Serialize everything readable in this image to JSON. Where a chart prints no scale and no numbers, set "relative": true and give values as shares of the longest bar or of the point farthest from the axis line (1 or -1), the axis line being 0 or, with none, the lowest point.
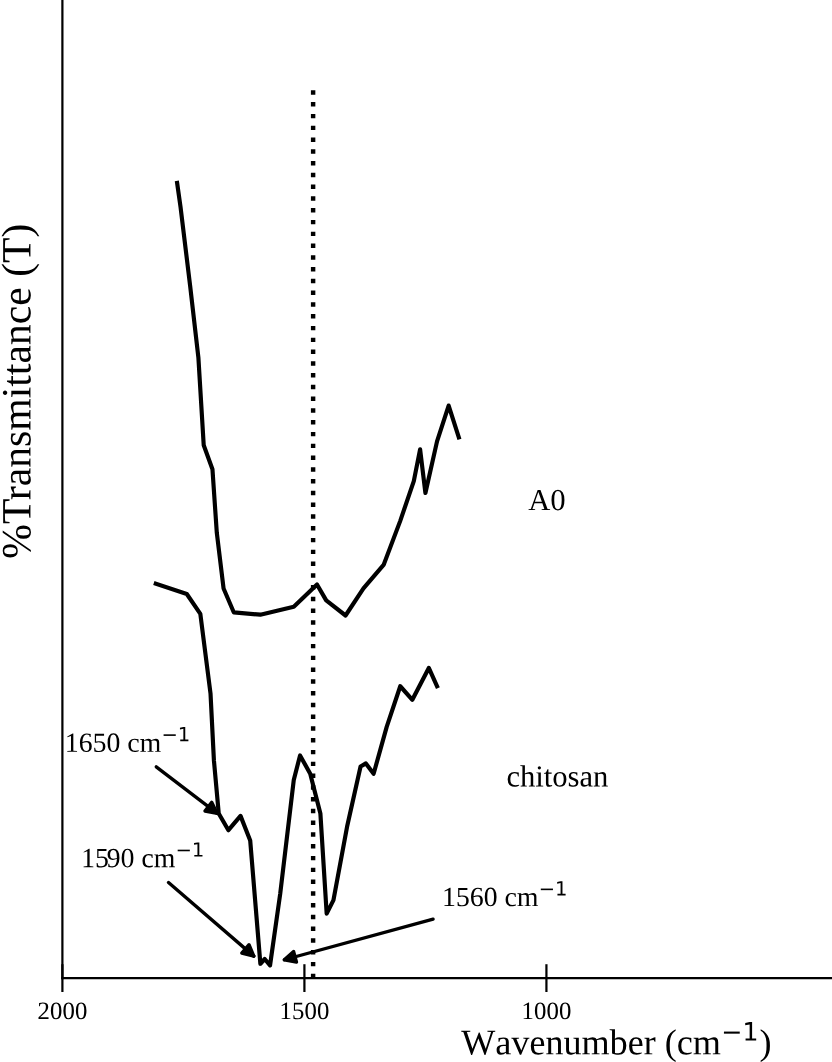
{
  "chart_data": {
    "type": "line",
    "relative": true,
    "xlabel": "Wavenumber (cm$^{−1}$)",
    "ylabel": "%Transmittance (T)",
    "xlim": [
      2000,
      410
    ],
    "xticks": [
      2000,
      1500,
      1000
    ],
    "grid": false,
    "legend": false,
    "marker": "none",
    "line_style": "solid",
    "series": [
      {
        "name": "A0",
        "color": "#000000",
        "x": [
          1763,
          1756,
          1736,
          1719,
          1708,
          1690,
          1681,
          1667,
          1646,
          1591,
          1522,
          1474,
          1455,
          1415,
          1378,
          1336,
          1302,
          1274,
          1261,
          1250,
          1226,
          1202,
          1181
        ],
        "values": [
          1.0,
          0.97,
          0.87,
          0.78,
          0.67,
          0.64,
          0.56,
          0.49,
          0.46,
          0.457,
          0.467,
          0.495,
          0.475,
          0.456,
          0.49,
          0.52,
          0.575,
          0.625,
          0.665,
          0.61,
          0.675,
          0.72,
          0.68
        ]
      },
      {
        "name": "chitosan",
        "color": "#000000",
        "x": [
          1807,
          1743,
          1715,
          1694,
          1687,
          1677,
          1657,
          1632,
          1612,
          1591,
          1582,
          1571,
          1550,
          1522,
          1509,
          1488,
          1467,
          1454,
          1440,
          1412,
          1384,
          1373,
          1357,
          1330,
          1302,
          1277,
          1243,
          1226
        ],
        "values": [
          0.496,
          0.483,
          0.458,
          0.358,
          0.274,
          0.207,
          0.186,
          0.204,
          0.173,
          0.018,
          0.024,
          0.016,
          0.106,
          0.249,
          0.28,
          0.257,
          0.207,
          0.081,
          0.098,
          0.19,
          0.266,
          0.27,
          0.257,
          0.316,
          0.367,
          0.35,
          0.39,
          0.367
        ]
      }
    ],
    "ref_lines": [
      {
        "axis": "x",
        "value": 1482,
        "label": null,
        "color": "#000000",
        "line_style": "dotted"
      }
    ],
    "annotations": [
      {
        "text": "1650 cm$^{−1}$",
        "x": 1665,
        "y": 0.2
      },
      {
        "text": "1590 cm$^{−1}$",
        "x": 1590,
        "y": 0.02
      },
      {
        "text": "1560 cm$^{−1}$",
        "x": 1560,
        "y": 0.02
      }
    ]
  }
}
